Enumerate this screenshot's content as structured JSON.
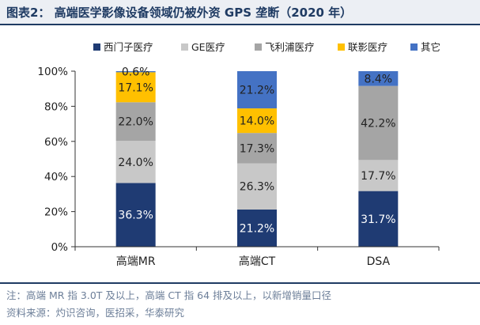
{
  "header": {
    "title": "图表2：  高端医学影像设备领域仍被外资 GPS 垄断（2020 年）"
  },
  "footer": {
    "note": "注：高端 MR 指 3.0T 及以上，高端 CT 指 64 排及以上，以新增销量口径",
    "source": "资料来源：灼识咨询，医招采，华泰研究"
  },
  "chart_data": {
    "type": "bar",
    "stacked": true,
    "categories": [
      "高端MR",
      "高端CT",
      "DSA"
    ],
    "ylim": [
      0,
      100
    ],
    "yticks": [
      "0%",
      "20%",
      "40%",
      "60%",
      "80%",
      "100%"
    ],
    "legend_position": "top",
    "series": [
      {
        "name": "西门子医疗",
        "color": "#1f3b73",
        "label_color": "#ffffff",
        "values": [
          36.3,
          21.2,
          31.7
        ],
        "labels": [
          "36.3%",
          "21.2%",
          "31.7%"
        ]
      },
      {
        "name": "GE医疗",
        "color": "#c8c8c8",
        "label_color": "#222222",
        "values": [
          24.0,
          26.3,
          17.7
        ],
        "labels": [
          "24.0%",
          "26.3%",
          "17.7%"
        ]
      },
      {
        "name": "飞利浦医疗",
        "color": "#a5a5a5",
        "label_color": "#222222",
        "values": [
          22.0,
          17.3,
          42.2
        ],
        "labels": [
          "22.0%",
          "17.3%",
          "42.2%"
        ]
      },
      {
        "name": "联影医疗",
        "color": "#ffc000",
        "label_color": "#222222",
        "values": [
          17.1,
          14.0,
          0
        ],
        "labels": [
          "17.1%",
          "14.0%",
          ""
        ]
      },
      {
        "name": "其它",
        "color": "#4472c4",
        "label_color": "#222222",
        "values": [
          0.6,
          21.2,
          8.4
        ],
        "labels": [
          "0.6%",
          "21.2%",
          "8.4%"
        ]
      }
    ]
  }
}
